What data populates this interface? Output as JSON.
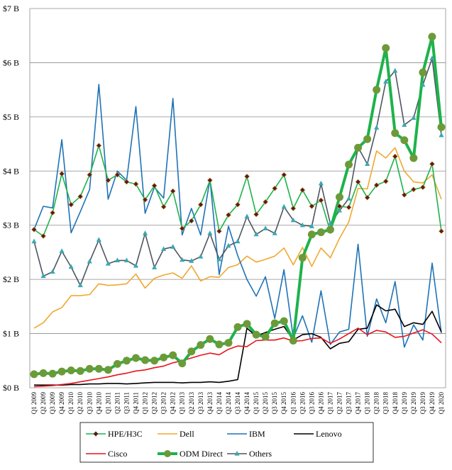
{
  "chart_data": {
    "type": "line",
    "title": "",
    "xlabel": "",
    "ylabel": "",
    "ylim": [
      0,
      7
    ],
    "y_ticks": [
      "$0 B",
      "$1 B",
      "$2 B",
      "$3 B",
      "$4 B",
      "$5 B",
      "$6 B",
      "$7 B"
    ],
    "grid": "horizontal",
    "legend_position": "bottom",
    "categories": [
      "Q1 2009",
      "Q2 2009",
      "Q3 2009",
      "Q4 2009",
      "Q1 2010",
      "Q2 2010",
      "Q3 2010",
      "Q4 2010",
      "Q1 2011",
      "Q2 2011",
      "Q3 2011",
      "Q4 2011",
      "Q1 2012",
      "Q2 2012",
      "Q3 2012",
      "Q4 2012",
      "Q1 2013",
      "Q2 2013",
      "Q3 2013",
      "Q4 2013",
      "Q1 2014",
      "Q2 2014",
      "Q3 2014",
      "Q4 2014",
      "Q1 2015",
      "Q2 2015",
      "Q3 2015",
      "Q4 2015",
      "Q1 2016",
      "Q2 2016",
      "Q3 2016",
      "Q4 2016",
      "Q1 2017",
      "Q2 2017",
      "Q3 2017",
      "Q4 2017",
      "Q1 2018",
      "Q2 2018",
      "Q3 2018",
      "Q4 2018",
      "Q1 2019",
      "Q2 2019",
      "Q3 2019",
      "Q4 2019",
      "Q1 2020"
    ],
    "series": [
      {
        "name": "HPE/H3C",
        "color": "#1db34a",
        "marker": "diamond",
        "marker_color": "#5c1a1a",
        "width": 1.6,
        "values": [
          2.92,
          2.8,
          3.23,
          3.95,
          3.38,
          3.53,
          3.93,
          4.47,
          3.83,
          3.93,
          3.8,
          3.76,
          3.47,
          3.73,
          3.34,
          3.63,
          2.94,
          3.08,
          3.38,
          3.83,
          2.89,
          3.19,
          3.38,
          3.9,
          3.2,
          3.43,
          3.68,
          3.93,
          3.31,
          3.65,
          3.35,
          3.46,
          2.89,
          3.35,
          3.33,
          3.8,
          3.51,
          3.74,
          3.81,
          4.27,
          3.56,
          3.66,
          3.7,
          4.13,
          2.89
        ]
      },
      {
        "name": "Dell",
        "color": "#f0a830",
        "marker": "none",
        "width": 1.6,
        "values": [
          1.1,
          1.2,
          1.4,
          1.48,
          1.7,
          1.7,
          1.72,
          1.92,
          1.89,
          1.9,
          1.92,
          2.1,
          1.84,
          2.02,
          2.08,
          2.12,
          2.02,
          2.25,
          1.97,
          2.05,
          2.04,
          2.22,
          2.27,
          2.43,
          2.32,
          2.37,
          2.43,
          2.58,
          2.27,
          2.59,
          2.24,
          2.58,
          2.4,
          2.76,
          3.06,
          3.68,
          3.67,
          4.37,
          4.24,
          4.43,
          4.0,
          3.8,
          3.78,
          3.93,
          3.48
        ]
      },
      {
        "name": "IBM",
        "color": "#1f73b6",
        "marker": "none",
        "width": 1.6,
        "values": [
          2.92,
          3.35,
          3.32,
          4.58,
          2.86,
          3.25,
          3.66,
          5.6,
          3.48,
          4.0,
          3.83,
          5.19,
          3.22,
          3.7,
          3.5,
          5.34,
          2.82,
          3.31,
          2.82,
          3.85,
          2.09,
          2.98,
          2.44,
          2.0,
          1.69,
          2.05,
          1.28,
          2.18,
          0.92,
          1.33,
          0.84,
          1.79,
          0.8,
          1.03,
          1.08,
          2.65,
          0.95,
          1.64,
          1.2,
          1.96,
          0.75,
          1.16,
          0.88,
          2.3,
          1.01
        ]
      },
      {
        "name": "Lenovo",
        "color": "#000000",
        "marker": "none",
        "width": 1.6,
        "values": [
          0.05,
          0.05,
          0.05,
          0.05,
          0.06,
          0.06,
          0.07,
          0.07,
          0.08,
          0.08,
          0.07,
          0.08,
          0.09,
          0.1,
          0.1,
          0.1,
          0.09,
          0.1,
          0.1,
          0.11,
          0.1,
          0.12,
          0.15,
          1.1,
          0.95,
          1.02,
          1.08,
          1.13,
          0.88,
          0.98,
          1.0,
          0.93,
          0.72,
          0.82,
          0.85,
          1.08,
          1.1,
          1.53,
          1.42,
          1.45,
          1.13,
          1.2,
          1.17,
          1.41,
          1.03
        ]
      },
      {
        "name": "Cisco",
        "color": "#e8141c",
        "marker": "none",
        "width": 1.6,
        "values": [
          0.02,
          0.03,
          0.04,
          0.06,
          0.08,
          0.11,
          0.14,
          0.17,
          0.2,
          0.24,
          0.27,
          0.31,
          0.33,
          0.37,
          0.4,
          0.46,
          0.5,
          0.55,
          0.6,
          0.64,
          0.61,
          0.71,
          0.77,
          0.76,
          0.87,
          0.88,
          0.88,
          0.92,
          0.86,
          0.87,
          0.91,
          0.92,
          0.82,
          0.9,
          1.0,
          1.1,
          0.98,
          1.06,
          1.03,
          0.93,
          0.95,
          1.01,
          1.07,
          0.99,
          0.83
        ]
      },
      {
        "name": "ODM Direct",
        "color": "#1db34a",
        "marker": "circle",
        "marker_color": "#6c9a38",
        "width": 4,
        "values": [
          0.25,
          0.27,
          0.26,
          0.3,
          0.32,
          0.31,
          0.35,
          0.35,
          0.33,
          0.44,
          0.5,
          0.55,
          0.51,
          0.5,
          0.56,
          0.6,
          0.45,
          0.67,
          0.79,
          0.9,
          0.8,
          0.83,
          1.12,
          1.18,
          0.98,
          0.94,
          1.19,
          1.23,
          0.87,
          2.4,
          2.83,
          2.87,
          2.92,
          3.52,
          4.12,
          4.43,
          4.59,
          5.5,
          6.27,
          4.7,
          4.57,
          4.24,
          5.82,
          6.48,
          4.81
        ]
      },
      {
        "name": "Others",
        "color": "#4f5562",
        "marker": "triangle",
        "marker_color": "#3aa8b0",
        "width": 1.6,
        "values": [
          2.7,
          2.06,
          2.14,
          2.52,
          2.23,
          1.89,
          2.33,
          2.73,
          2.29,
          2.35,
          2.35,
          2.25,
          2.85,
          2.22,
          2.56,
          2.6,
          2.36,
          2.34,
          2.42,
          2.85,
          2.37,
          2.62,
          2.7,
          3.16,
          2.83,
          2.94,
          2.85,
          3.34,
          3.09,
          3.0,
          2.98,
          3.77,
          3.03,
          3.27,
          3.49,
          4.44,
          4.13,
          4.8,
          5.65,
          5.85,
          4.85,
          4.98,
          5.59,
          6.08,
          4.66
        ]
      }
    ]
  }
}
